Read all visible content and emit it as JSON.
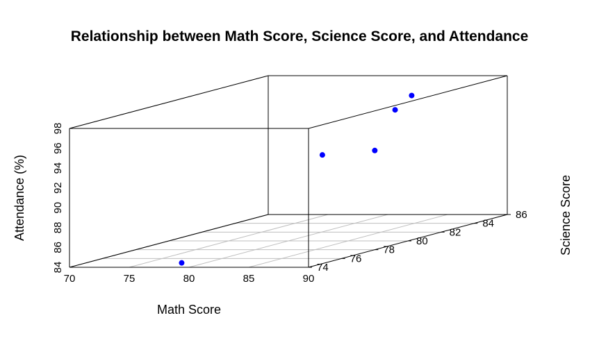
{
  "chart_data": {
    "type": "scatter",
    "title": "Relationship between Math Score, Science Score, and Attendance",
    "xlabel": "Math Score",
    "ylabel": "Science Score",
    "zlabel": "Attendance (%)",
    "xlim": [
      70,
      90
    ],
    "ylim": [
      74,
      86
    ],
    "zlim": [
      84,
      98
    ],
    "xticks": [
      70,
      75,
      80,
      85,
      90
    ],
    "yticks": [
      74,
      76,
      78,
      80,
      82,
      84,
      86
    ],
    "zticks": [
      84,
      86,
      88,
      90,
      92,
      94,
      96,
      98
    ],
    "grid": true,
    "point_color": "#0000ff",
    "points": [
      {
        "x": 78,
        "y": 75,
        "z": 84
      },
      {
        "x": 87,
        "y": 77,
        "z": 94
      },
      {
        "x": 90,
        "y": 78,
        "z": 94
      },
      {
        "x": 82,
        "y": 85,
        "z": 95
      },
      {
        "x": 82,
        "y": 86,
        "z": 96
      }
    ]
  }
}
